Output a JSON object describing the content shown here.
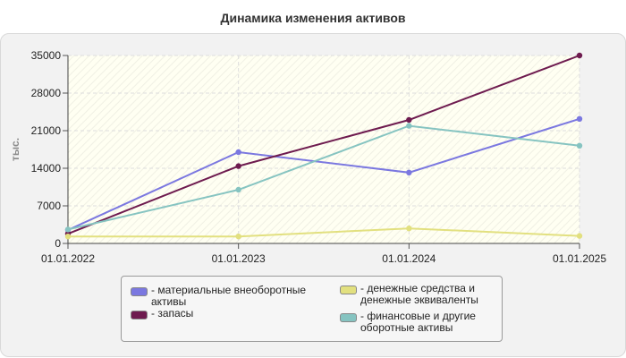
{
  "chart_data": {
    "type": "line",
    "title": "Динамика изменения активов",
    "ylabel": "тыс.",
    "x": [
      "01.01.2022",
      "01.01.2023",
      "01.01.2024",
      "01.01.2025"
    ],
    "yticks": [
      "0",
      "7000",
      "14000",
      "21000",
      "28000",
      "35000"
    ],
    "ylim": [
      0,
      35000
    ],
    "grid": true,
    "legend_position": "bottom",
    "series": [
      {
        "name": "- материальные внеоборотные активы",
        "color": "#7b78e0",
        "values": [
          2500,
          17000,
          13200,
          23200
        ]
      },
      {
        "name": "- запасы",
        "color": "#6e1b4f",
        "values": [
          1800,
          14400,
          23000,
          35000
        ]
      },
      {
        "name": "- денежные средства и денежные эквиваленты",
        "color": "#e2e07f",
        "values": [
          1300,
          1300,
          2800,
          1400
        ]
      },
      {
        "name": "- финансовые и другие оборотные активы",
        "color": "#86c4c1",
        "values": [
          2600,
          10000,
          21900,
          18200
        ]
      }
    ]
  }
}
